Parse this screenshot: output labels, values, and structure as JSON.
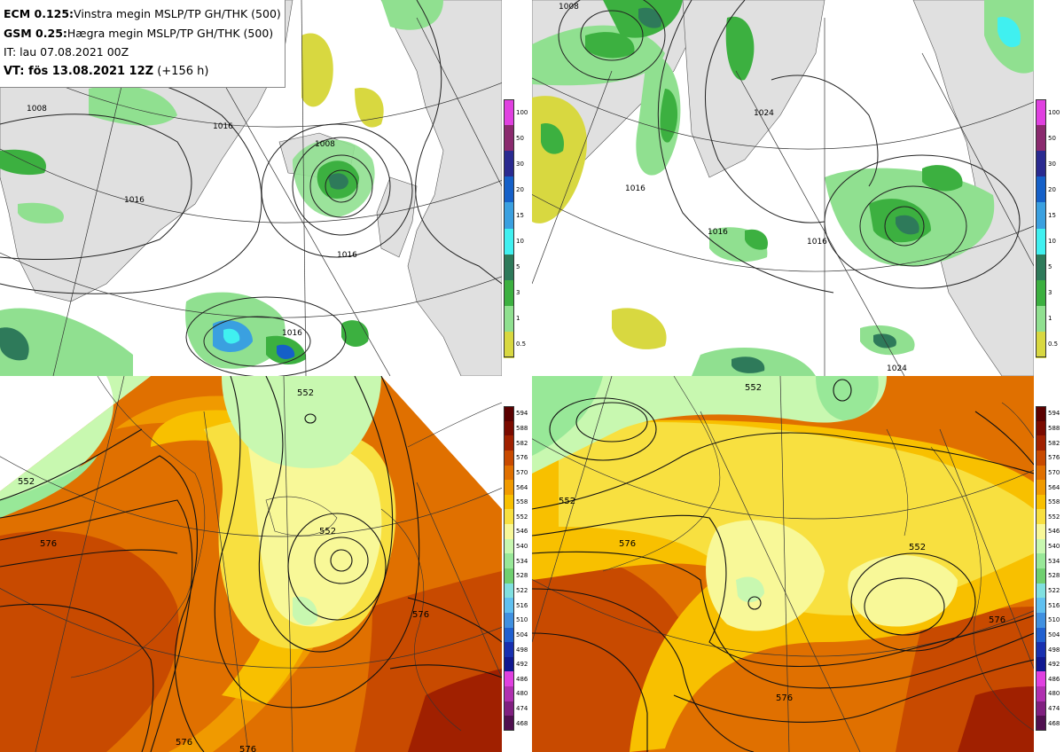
{
  "header": {
    "ecm_model": "ECM 0.125:",
    "ecm_desc": "Vinstra megin MSLP/TP GH/THK (500)",
    "gsm_model": "GSM 0.25:",
    "gsm_desc": "Hægra megin MSLP/TP GH/THK (500)",
    "init_time": "IT: lau 07.08.2021 00Z",
    "valid_prefix": "VT: fös 13.08.2021 12Z",
    "valid_lead": " (+156 h)"
  },
  "precip_colorbar": {
    "labels": [
      "100",
      "50",
      "30",
      "20",
      "15",
      "10",
      "5",
      "3",
      "1",
      "0.5"
    ],
    "colors": [
      "#e040e0",
      "#8a2a6e",
      "#2a2a90",
      "#1560c8",
      "#3aa0e0",
      "#40f0f0",
      "#2e7a5a",
      "#3cb040",
      "#90e090",
      "#d8d840"
    ]
  },
  "gh_colorbar": {
    "labels": [
      "594",
      "588",
      "582",
      "576",
      "570",
      "564",
      "558",
      "552",
      "546",
      "540",
      "534",
      "528",
      "522",
      "516",
      "510",
      "504",
      "498",
      "492",
      "486",
      "480",
      "474",
      "468"
    ],
    "colors": [
      "#5a0000",
      "#7a0a00",
      "#a02000",
      "#c84a00",
      "#e07000",
      "#f09a00",
      "#f8c000",
      "#f8e040",
      "#f8f898",
      "#c8f8b0",
      "#98e898",
      "#70d070",
      "#80e0e0",
      "#60c0f0",
      "#4090e0",
      "#2060d0",
      "#1830b0",
      "#101890",
      "#e040e0",
      "#b030b0",
      "#802080",
      "#501050"
    ]
  },
  "contour_labels": {
    "tl": [
      "1008",
      "1016",
      "1016",
      "1016",
      "1008",
      "1016"
    ],
    "tr": [
      "1008",
      "1016",
      "1024",
      "1016",
      "1016",
      "1024"
    ],
    "bl": [
      "552",
      "552",
      "552",
      "576",
      "576",
      "576",
      "576"
    ],
    "br": [
      "552",
      "552",
      "552",
      "576",
      "576",
      "576"
    ]
  }
}
